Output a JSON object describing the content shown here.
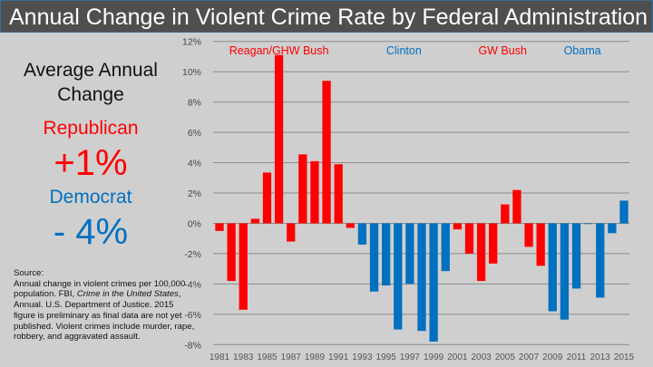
{
  "title": "Annual Change in Violent Crime Rate by Federal Administration",
  "sidebar": {
    "heading": "Average Annual Change",
    "republican_label": "Republican",
    "republican_value": "+1%",
    "democrat_label": "Democrat",
    "democrat_value": "- 4%",
    "source_heading": "Source:",
    "source_1": "Annual change in violent crimes per 100,000 population. FBI, ",
    "source_italic_1": "Crime in the United States",
    "source_2": ", Annual. U.S. Department of Justice. 2015 figure is preliminary as final data are not yet published. Violent crimes include murder, rape, robbery, and aggravated assault."
  },
  "colors": {
    "republican": "#ff0000",
    "democrat": "#0070c0",
    "title_bar": "#4f4f4f",
    "background": "#d0cfcf"
  },
  "chart_data": {
    "type": "bar",
    "title": "Annual Change in Violent Crime Rate by Federal Administration",
    "xlabel": "",
    "ylabel": "",
    "ylim": [
      -8,
      12
    ],
    "yticks": [
      12,
      10,
      8,
      6,
      4,
      2,
      0,
      -2,
      -4,
      -6,
      -8
    ],
    "ytick_labels": [
      "12%",
      "10%",
      "8%",
      "6%",
      "4%",
      "2%",
      "0%",
      "-2%",
      "-4%",
      "-6%",
      "-8%"
    ],
    "grid": true,
    "x_tick_labels": [
      "1981",
      "1983",
      "1985",
      "1987",
      "1989",
      "1991",
      "1993",
      "1995",
      "1997",
      "1999",
      "2001",
      "2003",
      "2005",
      "2007",
      "2009",
      "2011",
      "2013",
      "2015"
    ],
    "categories": [
      1981,
      1982,
      1983,
      1984,
      1985,
      1986,
      1987,
      1988,
      1989,
      1990,
      1991,
      1992,
      1993,
      1994,
      1995,
      1996,
      1997,
      1998,
      1999,
      2000,
      2001,
      2002,
      2003,
      2004,
      2005,
      2006,
      2007,
      2008,
      2009,
      2010,
      2011,
      2012,
      2013,
      2014,
      2015
    ],
    "values": [
      -0.5,
      -3.8,
      -5.7,
      0.3,
      3.35,
      11.1,
      -1.2,
      4.55,
      4.1,
      9.4,
      3.9,
      -0.3,
      -1.4,
      -4.5,
      -4.1,
      -7.0,
      -4.0,
      -7.1,
      -7.8,
      -3.15,
      -0.4,
      -2.0,
      -3.8,
      -2.65,
      1.25,
      2.2,
      -1.55,
      -2.8,
      -5.8,
      -6.35,
      -4.3,
      -0.05,
      -4.9,
      -0.65,
      1.5
    ],
    "party": [
      "R",
      "R",
      "R",
      "R",
      "R",
      "R",
      "R",
      "R",
      "R",
      "R",
      "R",
      "R",
      "D",
      "D",
      "D",
      "D",
      "D",
      "D",
      "D",
      "D",
      "R",
      "R",
      "R",
      "R",
      "R",
      "R",
      "R",
      "R",
      "D",
      "D",
      "D",
      "D",
      "D",
      "D",
      "D"
    ],
    "annotations": [
      {
        "text": "Reagan/GHW Bush",
        "party": "R",
        "year": 1986
      },
      {
        "text": "Clinton",
        "party": "D",
        "year": 1996.5
      },
      {
        "text": "GW Bush",
        "party": "R",
        "year": 2004.8
      },
      {
        "text": "Obama",
        "party": "D",
        "year": 2011.5
      }
    ]
  }
}
